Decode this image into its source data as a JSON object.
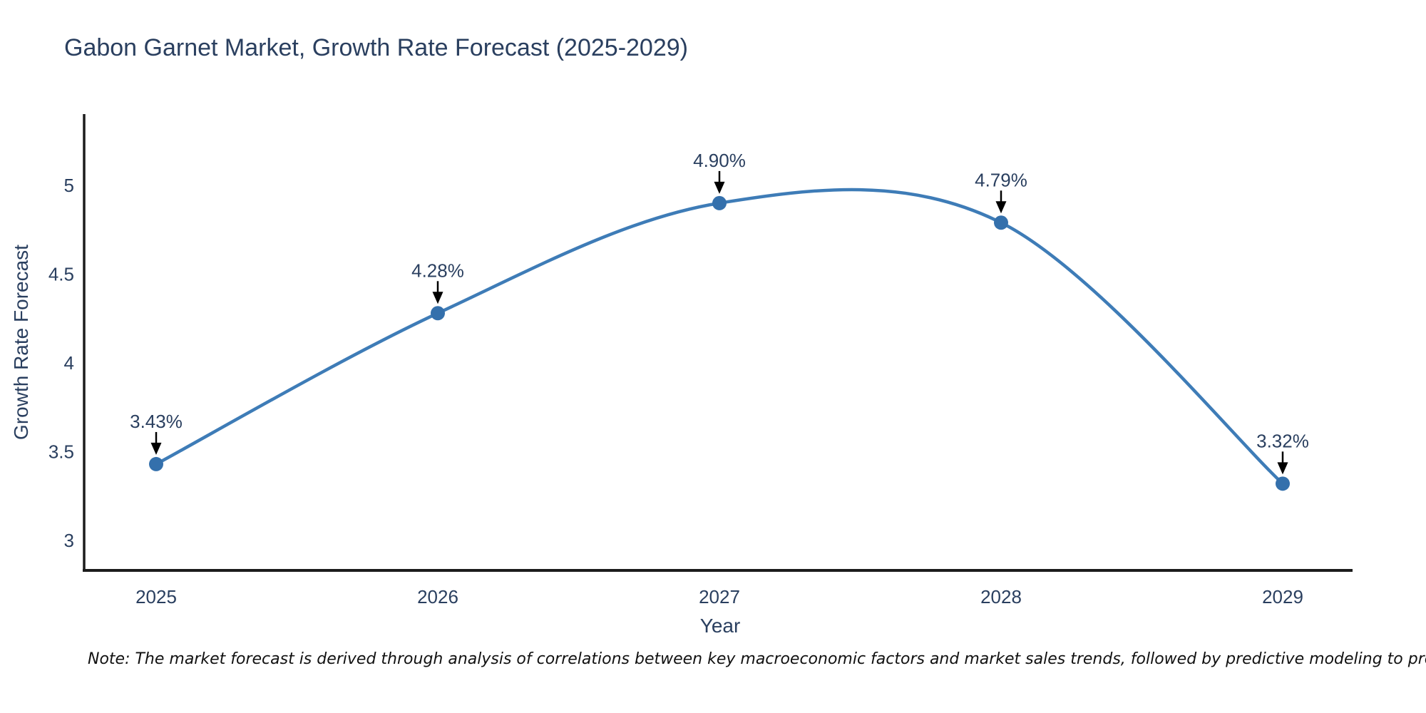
{
  "title": "Gabon Garnet Market, Growth Rate Forecast (2025-2029)",
  "note": "Note: The market forecast is derived through analysis of correlations between key macroeconomic factors and market sales trends, followed by predictive modeling to project future sales",
  "chart_data": {
    "type": "line",
    "title": "Gabon Garnet Market, Growth Rate Forecast (2025-2029)",
    "xlabel": "Year",
    "ylabel": "Growth Rate Forecast",
    "categories": [
      "2025",
      "2026",
      "2027",
      "2028",
      "2029"
    ],
    "series": [
      {
        "name": "Growth Rate Forecast",
        "values": [
          3.43,
          4.28,
          4.9,
          4.79,
          3.32
        ],
        "point_labels": [
          "3.43%",
          "4.28%",
          "4.90%",
          "4.79%",
          "3.32%"
        ]
      }
    ],
    "yticks": [
      3,
      3.5,
      4,
      4.5,
      5
    ],
    "ylim": [
      2.83,
      5.4
    ],
    "grid": false,
    "legend": "none",
    "line_shape": "spline",
    "colors": {
      "line": "#3E7CB7",
      "marker": "#3470AC",
      "text": "#2a3f5f",
      "axis": "#1c1c1c",
      "arrow": "#000000"
    }
  }
}
